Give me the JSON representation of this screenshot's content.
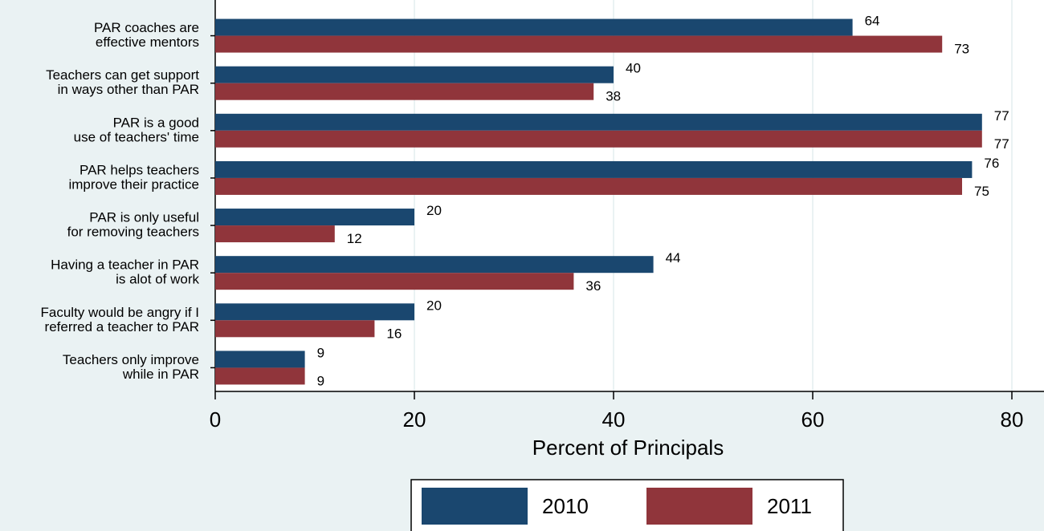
{
  "chart_data": {
    "type": "barh",
    "categories": [
      [
        "PAR coaches are",
        "effective mentors"
      ],
      [
        "Teachers can get support",
        "in ways other than PAR"
      ],
      [
        "PAR is a good",
        "use of teachers' time"
      ],
      [
        "PAR helps teachers",
        "improve their practice"
      ],
      [
        "PAR is only useful",
        "for removing teachers"
      ],
      [
        "Having a teacher in PAR",
        "is alot of work"
      ],
      [
        "Faculty would be angry if I",
        "referred a teacher to PAR"
      ],
      [
        "Teachers only improve",
        "while in PAR"
      ]
    ],
    "series": [
      {
        "name": "2010",
        "color": "#1a476f",
        "values": [
          64,
          40,
          77,
          76,
          20,
          44,
          20,
          9
        ]
      },
      {
        "name": "2011",
        "color": "#90353b",
        "values": [
          73,
          38,
          77,
          75,
          12,
          36,
          16,
          9
        ]
      }
    ],
    "xlabel": "Percent of Principals",
    "xlim": [
      0,
      80
    ],
    "xticks": [
      0,
      20,
      40,
      60,
      80
    ],
    "grid": true,
    "legend": "bottom"
  }
}
